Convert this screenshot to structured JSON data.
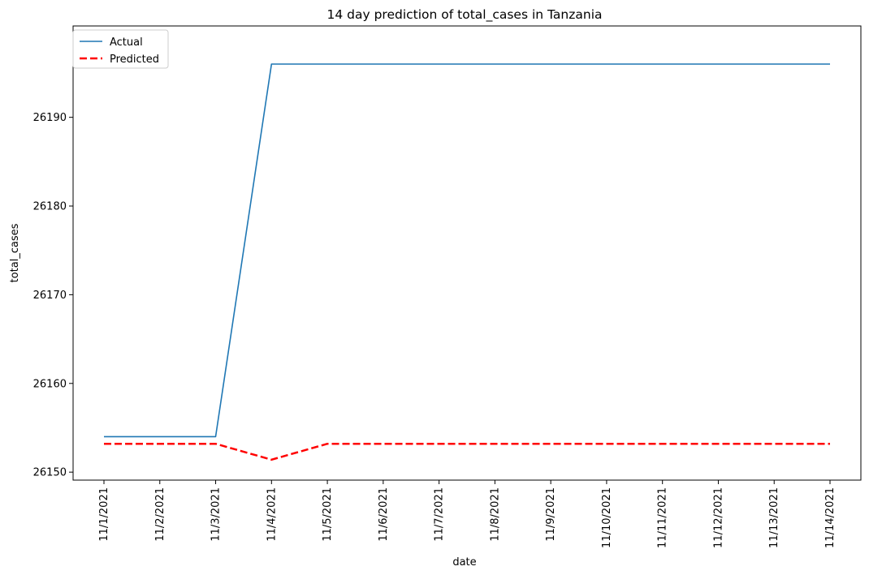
{
  "chart_data": {
    "type": "line",
    "title": "14 day prediction of total_cases in Tanzania",
    "xlabel": "date",
    "ylabel": "total_cases",
    "categories": [
      "11/1/2021",
      "11/2/2021",
      "11/3/2021",
      "11/4/2021",
      "11/5/2021",
      "11/6/2021",
      "11/7/2021",
      "11/8/2021",
      "11/9/2021",
      "11/10/2021",
      "11/11/2021",
      "11/12/2021",
      "11/13/2021",
      "11/14/2021"
    ],
    "ylim": [
      26149.1,
      26200.3
    ],
    "yticks": [
      26150,
      26160,
      26170,
      26180,
      26190
    ],
    "grid": false,
    "legend_position": "top-left",
    "series": [
      {
        "name": "Actual",
        "color": "#1f77b4",
        "style": "solid",
        "values": [
          26154,
          26154,
          26154,
          26196,
          26196,
          26196,
          26196,
          26196,
          26196,
          26196,
          26196,
          26196,
          26196,
          26196
        ]
      },
      {
        "name": "Predicted",
        "color": "#ff0000",
        "style": "dashed",
        "values": [
          26153.2,
          26153.2,
          26153.2,
          26151.4,
          26153.2,
          26153.2,
          26153.2,
          26153.2,
          26153.2,
          26153.2,
          26153.2,
          26153.2,
          26153.2,
          26153.2
        ]
      }
    ]
  }
}
